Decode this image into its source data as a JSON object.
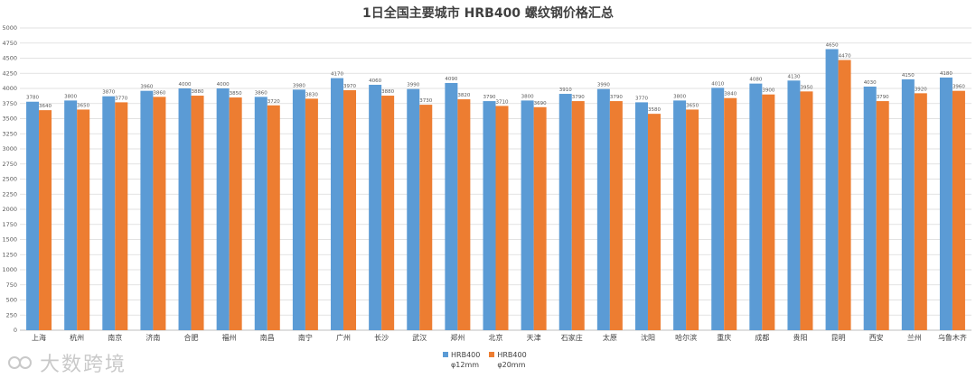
{
  "chart_data": {
    "type": "bar",
    "title": "1日全国主要城市 HRB400 螺纹钢价格汇总",
    "categories": [
      "上海",
      "杭州",
      "南京",
      "济南",
      "合肥",
      "福州",
      "南昌",
      "南宁",
      "广州",
      "长沙",
      "武汉",
      "郑州",
      "北京",
      "天津",
      "石家庄",
      "太原",
      "沈阳",
      "哈尔滨",
      "重庆",
      "成都",
      "贵阳",
      "昆明",
      "西安",
      "兰州",
      "乌鲁木齐"
    ],
    "series": [
      {
        "name": "HRB400\nφ12mm",
        "color": "#5B9BD5",
        "values": [
          3780,
          3800,
          3870,
          3960,
          4000,
          4000,
          3860,
          3980,
          4170,
          4060,
          3990,
          4090,
          3790,
          3800,
          3910,
          3990,
          3770,
          3800,
          4010,
          4080,
          4130,
          4650,
          4030,
          4150,
          4180
        ]
      },
      {
        "name": "HRB400\nφ20mm",
        "color": "#ED7D31",
        "values": [
          3640,
          3650,
          3770,
          3860,
          3880,
          3850,
          3720,
          3830,
          3970,
          3880,
          3730,
          3820,
          3710,
          3690,
          3790,
          3790,
          3580,
          3650,
          3840,
          3900,
          3950,
          4470,
          3790,
          3920,
          3960
        ]
      }
    ],
    "ylim": [
      0,
      5000
    ],
    "yticks": [
      0,
      250,
      500,
      750,
      1000,
      1250,
      1500,
      1750,
      2000,
      2250,
      2500,
      2750,
      3000,
      3250,
      3500,
      3750,
      4000,
      4250,
      4500,
      4750,
      5000
    ],
    "grid": true,
    "legend_position": "bottom"
  },
  "watermark": "大数跨境"
}
